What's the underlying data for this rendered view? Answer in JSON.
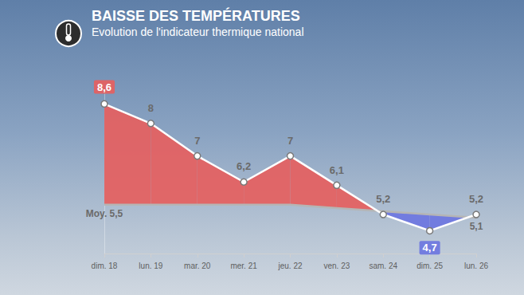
{
  "chart_data": {
    "type": "line",
    "title": "BAISSE DES TEMPÉRATURES",
    "subtitle": "Evolution de l'indicateur thermique national",
    "categories": [
      "dim. 18",
      "lun. 19",
      "mar. 20",
      "mer. 21",
      "jeu. 22",
      "ven. 23",
      "sam. 24",
      "dim. 25",
      "lun. 26"
    ],
    "series": [
      {
        "color": "#ffffff",
        "values": [
          8.6,
          8,
          7,
          6.2,
          7,
          6.1,
          5.2,
          4.7,
          5.2
        ],
        "value_labels": [
          "8,6",
          "8",
          "7",
          "6,2",
          "7",
          "6,1",
          "5,2",
          "4,7",
          "5,2"
        ]
      },
      {
        "color": "#b5b5b5",
        "values": [
          5.5,
          5.5,
          5.5,
          5.5,
          5.5,
          5.4,
          5.3,
          5.2,
          5.1
        ],
        "value_labels": [
          "Moy. 5,5",
          null,
          null,
          null,
          null,
          null,
          null,
          null,
          "5,1"
        ]
      }
    ],
    "ylim": [
      4,
      9
    ],
    "tick_labels": "x",
    "grid": false,
    "data_labels": true
  }
}
